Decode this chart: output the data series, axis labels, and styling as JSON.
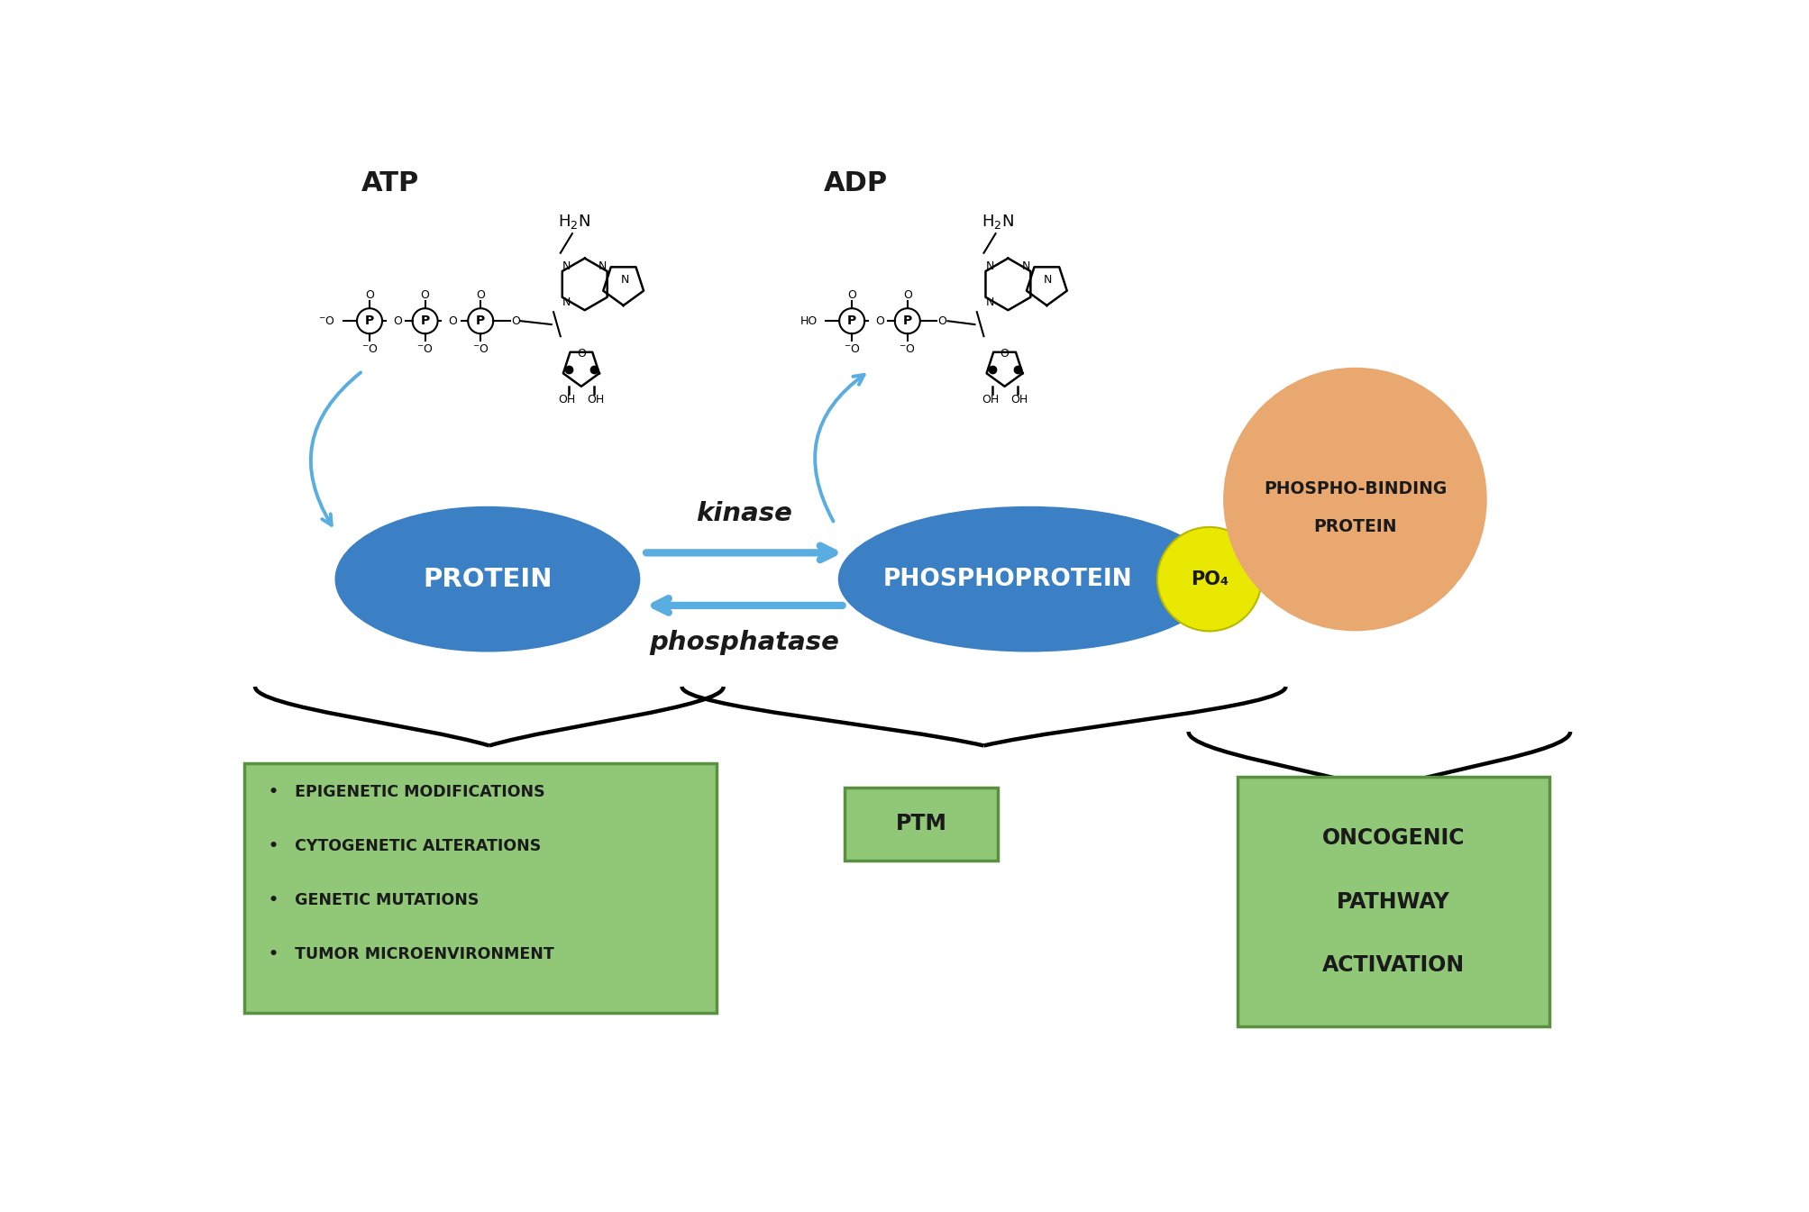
{
  "background_color": "#ffffff",
  "atp_label": "ATP",
  "adp_label": "ADP",
  "protein_label": "PROTEIN",
  "phosphoprotein_label": "PHOSPHOPROTEIN",
  "po4_label": "PO₄",
  "kinase_label": "kinase",
  "phosphatase_label": "phosphatase",
  "ptm_label": "PTM",
  "bullet_box_items": [
    "•   EPIGENETIC MODIFICATIONS",
    "•   CYTOGENETIC ALTERATIONS",
    "•   GENETIC MUTATIONS",
    "•   TUMOR MICROENVIRONMENT"
  ],
  "oncogenic_label": "ONCOGENIC\n\nPATHWAY\n\nACTIVATION",
  "phospho_binding_line1": "PHOSPHO-BINDING",
  "phospho_binding_line2": "PROTEIN",
  "protein_color": "#3b7fc4",
  "phosphoprotein_color": "#3b7fc4",
  "po4_color": "#e8e800",
  "phospho_binding_color": "#e8a870",
  "arrow_color": "#5aade0",
  "green_box_color": "#90c878",
  "green_box_edge": "#5a9040",
  "text_color_white": "#ffffff",
  "text_color_dark": "#1a1a1a"
}
